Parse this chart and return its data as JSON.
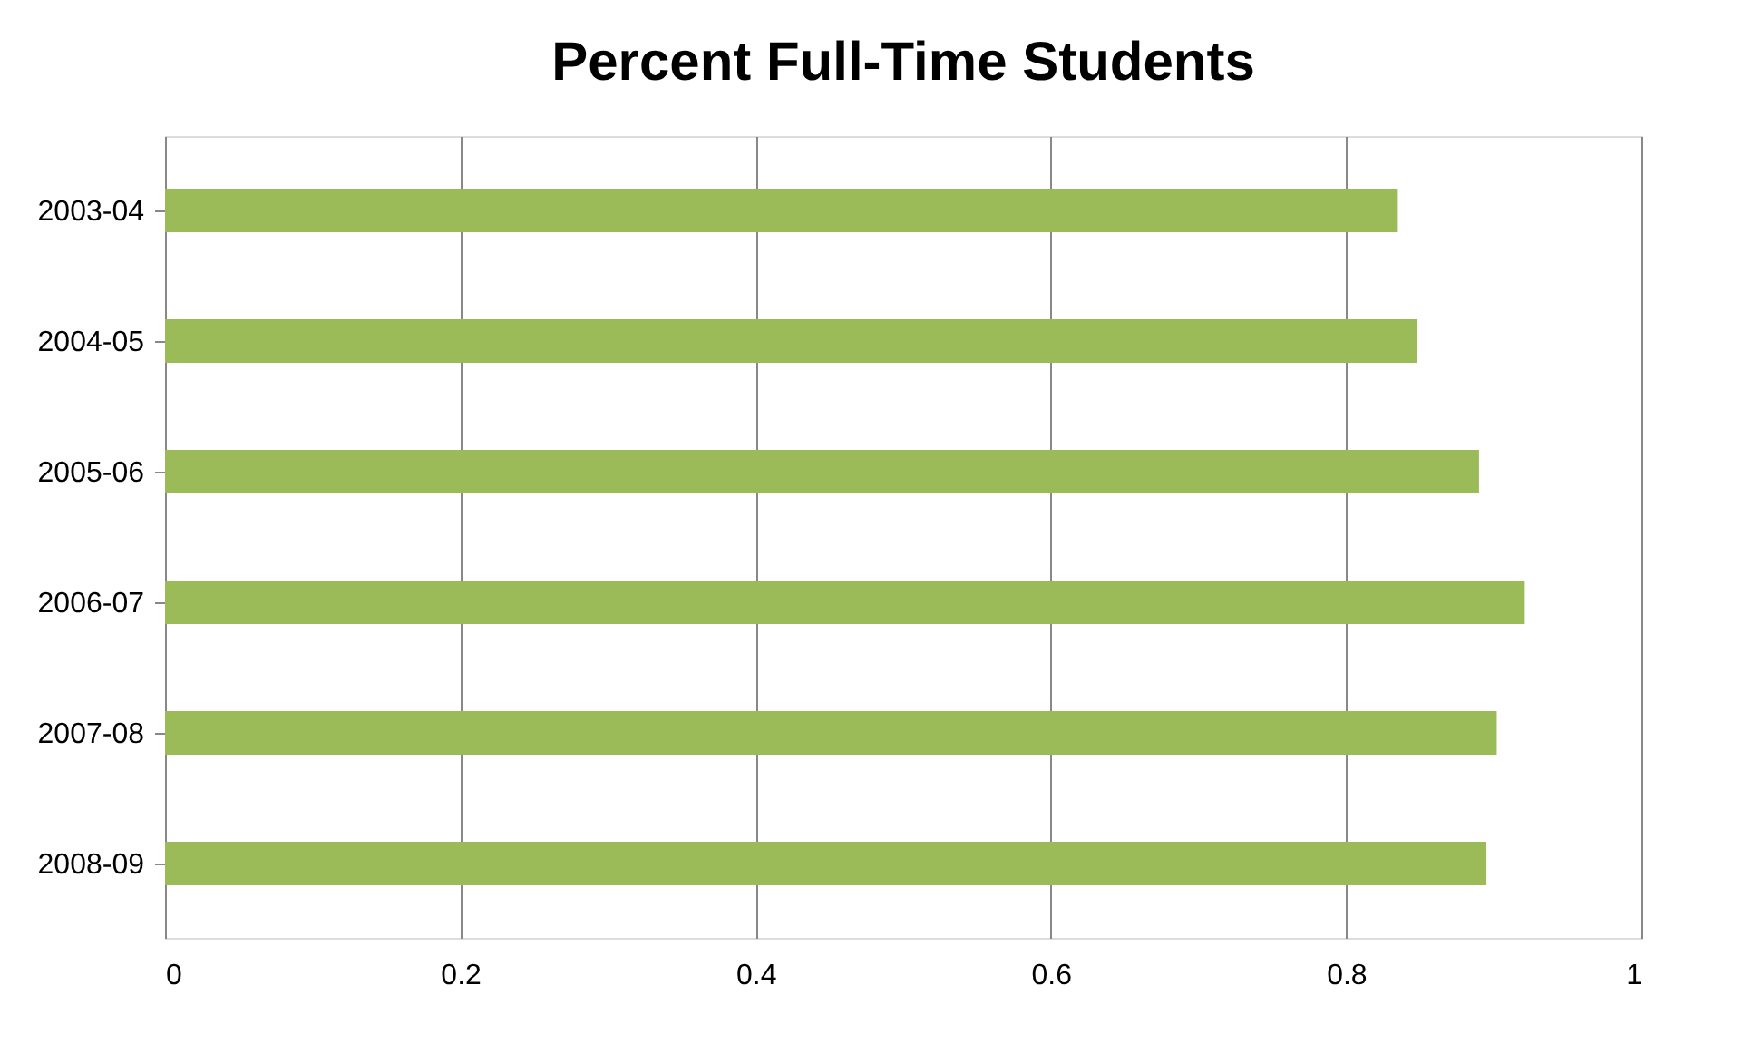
{
  "chart_data": {
    "type": "bar",
    "orientation": "horizontal",
    "title": "Percent Full-Time Students",
    "categories": [
      "2003-04",
      "2004-05",
      "2005-06",
      "2006-07",
      "2007-08",
      "2008-09"
    ],
    "values": [
      0.835,
      0.848,
      0.89,
      0.921,
      0.902,
      0.895
    ],
    "color": "#9bbb59",
    "xlim": [
      0,
      1
    ],
    "xticks": [
      0,
      0.2,
      0.4,
      0.6,
      0.8,
      1
    ],
    "grid": "x"
  }
}
